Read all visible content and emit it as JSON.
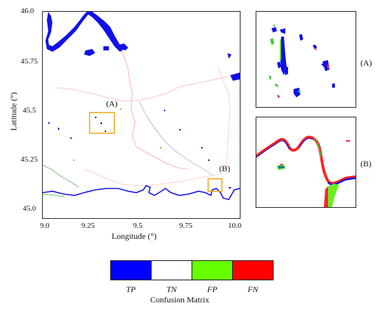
{
  "main_map": {
    "y_axis_title": "Latitude (°)",
    "x_axis_title": "Longitude (°)",
    "y_ticks": [
      "46.0",
      "45.75",
      "45.5",
      "45.25",
      "45.0"
    ],
    "x_ticks": [
      "9.0",
      "9.25",
      "9.5",
      "9.75",
      "10.0"
    ],
    "inset_markers": [
      {
        "label": "(A)",
        "lon": 9.33,
        "lat": 45.4
      },
      {
        "label": "(B)",
        "lon": 9.88,
        "lat": 45.11
      }
    ],
    "highlight_color": "#f2a81d"
  },
  "insets": [
    {
      "label": "(A)"
    },
    {
      "label": "(B)"
    }
  ],
  "legend": {
    "title": "Confusion Matrix",
    "entries": [
      {
        "label": "TP",
        "color": "#0000ff"
      },
      {
        "label": "TN",
        "color": "#ffffff"
      },
      {
        "label": "FP",
        "color": "#66ff00"
      },
      {
        "label": "FN",
        "color": "#ff0000"
      }
    ]
  }
}
